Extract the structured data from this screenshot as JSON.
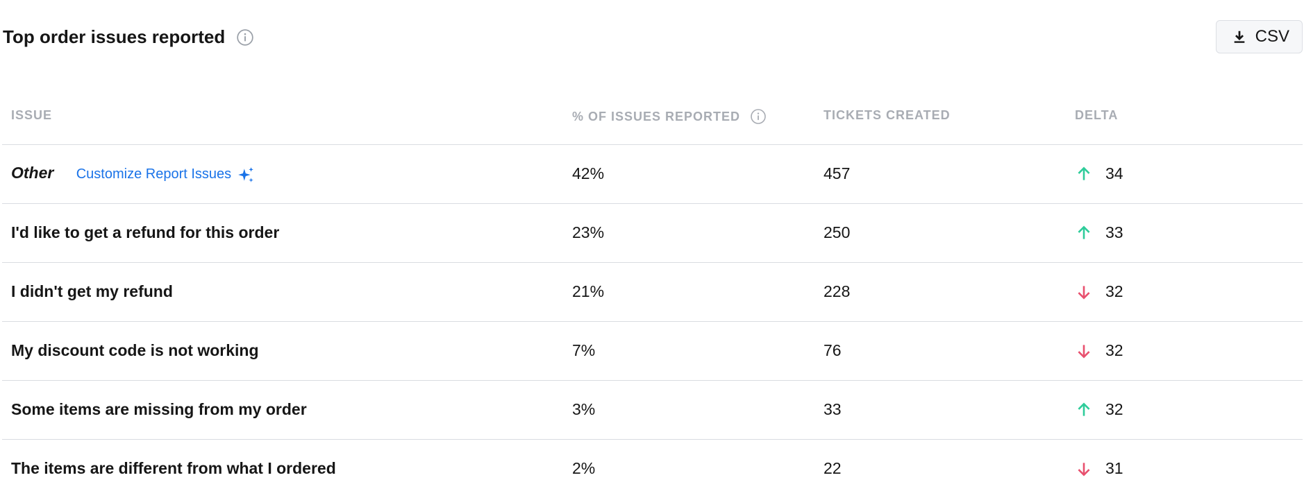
{
  "header": {
    "title": "Top order issues reported",
    "csv_label": "CSV"
  },
  "columns": {
    "issue": "ISSUE",
    "percent": "% OF ISSUES REPORTED",
    "tickets": "TICKETS CREATED",
    "delta": "DELTA"
  },
  "customize_link": "Customize Report Issues",
  "colors": {
    "up": "#2ecc9a",
    "down": "#e8506e",
    "link": "#1a73e8"
  },
  "rows": [
    {
      "issue": "Other",
      "percent": "42%",
      "tickets": "457",
      "delta": "34",
      "direction": "up"
    },
    {
      "issue": "I'd like to get a refund for this order",
      "percent": "23%",
      "tickets": "250",
      "delta": "33",
      "direction": "up"
    },
    {
      "issue": "I didn't get my refund",
      "percent": "21%",
      "tickets": "228",
      "delta": "32",
      "direction": "down"
    },
    {
      "issue": "My discount code is not working",
      "percent": "7%",
      "tickets": "76",
      "delta": "32",
      "direction": "down"
    },
    {
      "issue": "Some items are missing from my order",
      "percent": "3%",
      "tickets": "33",
      "delta": "32",
      "direction": "up"
    },
    {
      "issue": "The items are different from what I ordered",
      "percent": "2%",
      "tickets": "22",
      "delta": "31",
      "direction": "down"
    }
  ]
}
